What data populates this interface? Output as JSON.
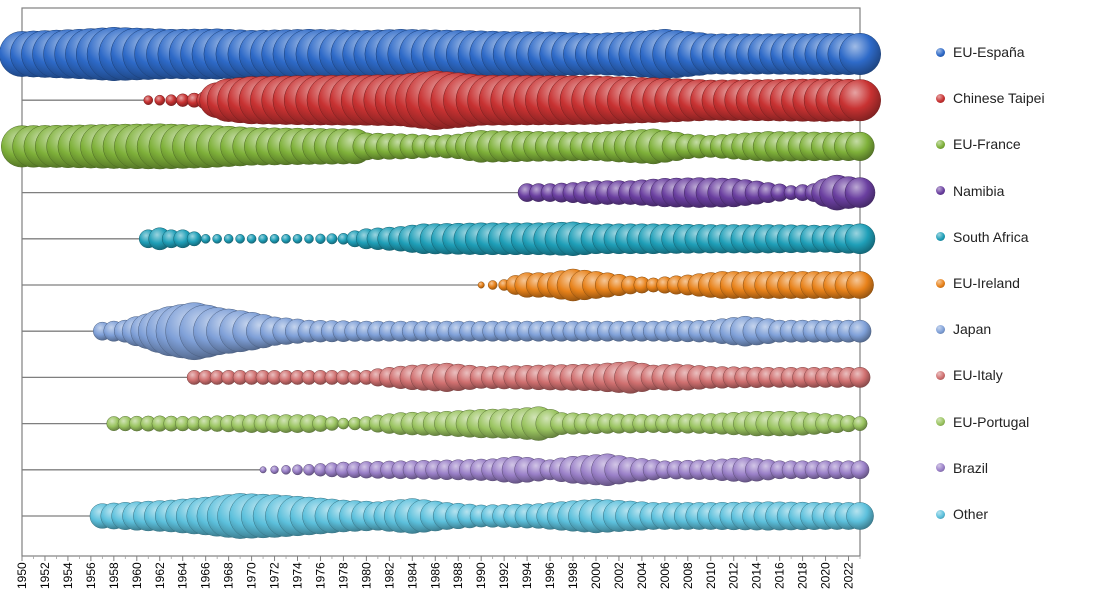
{
  "chart_data": {
    "type": "scatter",
    "title": "",
    "xlabel": "",
    "ylabel": "",
    "xlim": [
      1950,
      2023
    ],
    "x_tick_labels": [
      "1950",
      "1952",
      "1954",
      "1956",
      "1958",
      "1960",
      "1962",
      "1964",
      "1966",
      "1968",
      "1970",
      "1972",
      "1974",
      "1976",
      "1978",
      "1980",
      "1982",
      "1984",
      "1986",
      "1988",
      "1990",
      "1992",
      "1994",
      "1996",
      "1998",
      "2000",
      "2002",
      "2004",
      "2006",
      "2008",
      "2010",
      "2012",
      "2014",
      "2016",
      "2018",
      "2020",
      "2022"
    ],
    "grid": false,
    "legend_position": "right",
    "size_encoding": "relative annual magnitude (0-100 scale, estimated from bubble size)",
    "series": [
      {
        "name": "EU-España",
        "color": "#2e6ac8",
        "points": [
          [
            1950,
            50
          ],
          [
            1955,
            60
          ],
          [
            1958,
            70
          ],
          [
            1963,
            60
          ],
          [
            1967,
            62
          ],
          [
            1970,
            55
          ],
          [
            1975,
            60
          ],
          [
            1980,
            55
          ],
          [
            1983,
            60
          ],
          [
            1988,
            55
          ],
          [
            1992,
            50
          ],
          [
            1996,
            48
          ],
          [
            2000,
            42
          ],
          [
            2003,
            48
          ],
          [
            2006,
            60
          ],
          [
            2010,
            40
          ],
          [
            2015,
            40
          ],
          [
            2020,
            42
          ],
          [
            2023,
            42
          ]
        ]
      },
      {
        "name": "Chinese Taipei",
        "color": "#c83232",
        "points": [
          [
            1961,
            2
          ],
          [
            1963,
            3
          ],
          [
            1965,
            5
          ],
          [
            1966,
            8
          ],
          [
            1967,
            30
          ],
          [
            1968,
            45
          ],
          [
            1970,
            55
          ],
          [
            1975,
            60
          ],
          [
            1980,
            62
          ],
          [
            1983,
            65
          ],
          [
            1986,
            85
          ],
          [
            1990,
            62
          ],
          [
            1995,
            60
          ],
          [
            2000,
            58
          ],
          [
            2003,
            52
          ],
          [
            2006,
            48
          ],
          [
            2010,
            40
          ],
          [
            2015,
            42
          ],
          [
            2020,
            45
          ],
          [
            2023,
            42
          ]
        ]
      },
      {
        "name": "EU-France",
        "color": "#7fb13a",
        "points": [
          [
            1950,
            42
          ],
          [
            1955,
            45
          ],
          [
            1958,
            48
          ],
          [
            1962,
            50
          ],
          [
            1966,
            45
          ],
          [
            1970,
            35
          ],
          [
            1975,
            32
          ],
          [
            1979,
            30
          ],
          [
            1980,
            18
          ],
          [
            1984,
            15
          ],
          [
            1986,
            12
          ],
          [
            1988,
            15
          ],
          [
            1990,
            25
          ],
          [
            1995,
            22
          ],
          [
            2000,
            20
          ],
          [
            2005,
            30
          ],
          [
            2008,
            15
          ],
          [
            2010,
            12
          ],
          [
            2015,
            22
          ],
          [
            2020,
            20
          ],
          [
            2023,
            20
          ]
        ]
      },
      {
        "name": "Namibia",
        "color": "#6a3fa0",
        "points": [
          [
            1994,
            8
          ],
          [
            1996,
            8
          ],
          [
            1998,
            10
          ],
          [
            2000,
            14
          ],
          [
            2003,
            14
          ],
          [
            2006,
            20
          ],
          [
            2009,
            22
          ],
          [
            2012,
            20
          ],
          [
            2015,
            10
          ],
          [
            2017,
            5
          ],
          [
            2019,
            8
          ],
          [
            2021,
            30
          ],
          [
            2022,
            25
          ],
          [
            2023,
            22
          ]
        ]
      },
      {
        "name": "South Africa",
        "color": "#1f9fb8",
        "points": [
          [
            1961,
            8
          ],
          [
            1962,
            12
          ],
          [
            1963,
            8
          ],
          [
            1964,
            8
          ],
          [
            1966,
            2
          ],
          [
            1972,
            2
          ],
          [
            1975,
            2
          ],
          [
            1978,
            3
          ],
          [
            1980,
            10
          ],
          [
            1983,
            15
          ],
          [
            1985,
            22
          ],
          [
            1990,
            25
          ],
          [
            1995,
            25
          ],
          [
            1998,
            28
          ],
          [
            2000,
            22
          ],
          [
            2005,
            22
          ],
          [
            2010,
            20
          ],
          [
            2015,
            20
          ],
          [
            2020,
            18
          ],
          [
            2023,
            22
          ]
        ]
      },
      {
        "name": "EU-Ireland",
        "color": "#e8821a",
        "points": [
          [
            1990,
            1
          ],
          [
            1992,
            3
          ],
          [
            1994,
            15
          ],
          [
            1996,
            15
          ],
          [
            1998,
            25
          ],
          [
            2000,
            18
          ],
          [
            2003,
            8
          ],
          [
            2005,
            5
          ],
          [
            2008,
            10
          ],
          [
            2011,
            18
          ],
          [
            2015,
            18
          ],
          [
            2020,
            18
          ],
          [
            2023,
            18
          ]
        ]
      },
      {
        "name": "Japan",
        "color": "#7fa0d8",
        "points": [
          [
            1957,
            8
          ],
          [
            1959,
            12
          ],
          [
            1961,
            30
          ],
          [
            1963,
            60
          ],
          [
            1965,
            80
          ],
          [
            1967,
            55
          ],
          [
            1970,
            35
          ],
          [
            1972,
            20
          ],
          [
            1975,
            12
          ],
          [
            1980,
            10
          ],
          [
            1985,
            10
          ],
          [
            1990,
            10
          ],
          [
            1995,
            10
          ],
          [
            2000,
            10
          ],
          [
            2005,
            10
          ],
          [
            2010,
            12
          ],
          [
            2013,
            22
          ],
          [
            2016,
            12
          ],
          [
            2020,
            12
          ],
          [
            2023,
            12
          ]
        ]
      },
      {
        "name": "EU-Italy",
        "color": "#d07070",
        "points": [
          [
            1965,
            5
          ],
          [
            1970,
            5
          ],
          [
            1975,
            5
          ],
          [
            1980,
            5
          ],
          [
            1984,
            15
          ],
          [
            1987,
            20
          ],
          [
            1990,
            12
          ],
          [
            1995,
            15
          ],
          [
            2000,
            18
          ],
          [
            2003,
            25
          ],
          [
            2005,
            15
          ],
          [
            2007,
            18
          ],
          [
            2010,
            12
          ],
          [
            2015,
            10
          ],
          [
            2020,
            10
          ],
          [
            2023,
            10
          ]
        ]
      },
      {
        "name": "EU-Portugal",
        "color": "#9ac460",
        "points": [
          [
            1958,
            5
          ],
          [
            1962,
            6
          ],
          [
            1965,
            5
          ],
          [
            1970,
            8
          ],
          [
            1975,
            8
          ],
          [
            1978,
            3
          ],
          [
            1980,
            5
          ],
          [
            1983,
            12
          ],
          [
            1987,
            15
          ],
          [
            1990,
            20
          ],
          [
            1993,
            22
          ],
          [
            1995,
            28
          ],
          [
            1997,
            12
          ],
          [
            2000,
            10
          ],
          [
            2005,
            8
          ],
          [
            2010,
            10
          ],
          [
            2014,
            15
          ],
          [
            2017,
            15
          ],
          [
            2020,
            10
          ],
          [
            2023,
            5
          ]
        ]
      },
      {
        "name": "Brazil",
        "color": "#9a80c8",
        "points": [
          [
            1971,
            1
          ],
          [
            1975,
            3
          ],
          [
            1978,
            6
          ],
          [
            1983,
            8
          ],
          [
            1988,
            10
          ],
          [
            1991,
            12
          ],
          [
            1993,
            18
          ],
          [
            1996,
            10
          ],
          [
            1998,
            18
          ],
          [
            2001,
            25
          ],
          [
            2003,
            15
          ],
          [
            2006,
            8
          ],
          [
            2010,
            10
          ],
          [
            2013,
            15
          ],
          [
            2016,
            8
          ],
          [
            2020,
            8
          ],
          [
            2023,
            8
          ]
        ]
      },
      {
        "name": "Other",
        "color": "#5cc0dc",
        "points": [
          [
            1957,
            15
          ],
          [
            1960,
            20
          ],
          [
            1963,
            25
          ],
          [
            1966,
            35
          ],
          [
            1969,
            50
          ],
          [
            1972,
            45
          ],
          [
            1975,
            35
          ],
          [
            1978,
            25
          ],
          [
            1981,
            20
          ],
          [
            1984,
            30
          ],
          [
            1987,
            18
          ],
          [
            1990,
            12
          ],
          [
            1995,
            15
          ],
          [
            2000,
            28
          ],
          [
            2005,
            18
          ],
          [
            2010,
            18
          ],
          [
            2015,
            20
          ],
          [
            2020,
            18
          ],
          [
            2023,
            18
          ]
        ]
      }
    ]
  }
}
